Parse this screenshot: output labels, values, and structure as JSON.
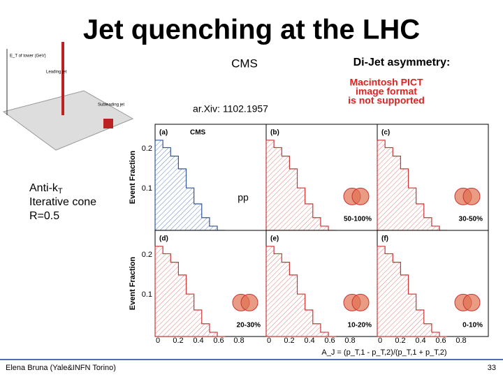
{
  "slide": {
    "title": "Jet quenching at the LHC",
    "cms_label": "CMS",
    "dijet_label": "Di-Jet asymmetry:",
    "pict_message": [
      "Macintosh PICT",
      "image format",
      "is not supported"
    ],
    "arxiv": "ar.Xiv: 1102.1957",
    "algorithm": {
      "line1": "Anti-k",
      "line1_sub": "T",
      "line2": "Iterative cone",
      "line3": "R=0.5"
    },
    "pp_label": "pp",
    "event_display": {
      "axis_label": "E_T of tower (GeV)",
      "leading": "Leading jet",
      "subleading": "Subleading jet"
    },
    "figure": {
      "y_axis_label": "Event Fraction",
      "x_axis_label": "A_J = (p_T,1 - p_T,2)/(p_T,1 + p_T,2)",
      "y_tick_labels": [
        "0.2",
        "0.1"
      ],
      "x_tick_labels": [
        "0",
        "0.2",
        "0.4",
        "0.6",
        "0.8"
      ],
      "panels": [
        {
          "label": "(a)",
          "tag": "CMS"
        },
        {
          "label": "(b)",
          "tag": "50-100%"
        },
        {
          "label": "(c)",
          "tag": "30-50%"
        },
        {
          "label": "(d)",
          "tag": "20-30%"
        },
        {
          "label": "(e)",
          "tag": "10-20%"
        },
        {
          "label": "(f)",
          "tag": "0-10%"
        }
      ]
    },
    "footer": {
      "author": "Elena Bruna (Yale&INFN Torino)",
      "page": "33"
    }
  }
}
